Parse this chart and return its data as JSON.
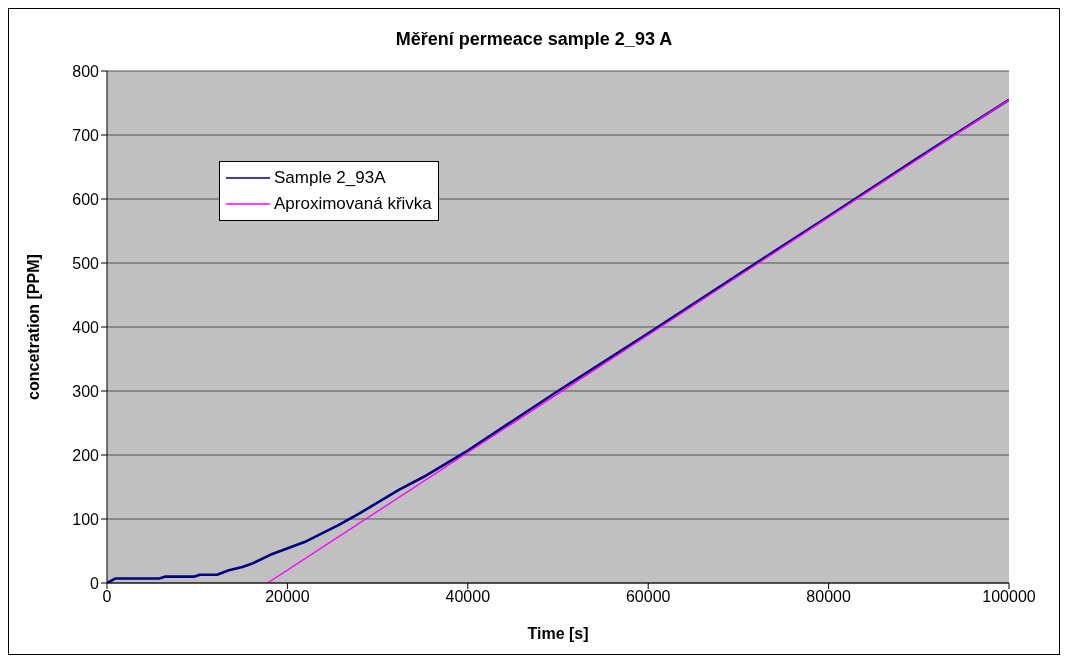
{
  "chart_data": {
    "type": "line",
    "title": "Měření permeace sample 2_93 A",
    "xlabel": "Time [s]",
    "ylabel": "concetration [PPM]",
    "xlim": [
      0,
      100000
    ],
    "xticks": [
      0,
      20000,
      40000,
      60000,
      80000,
      100000
    ],
    "ylim": [
      0,
      800
    ],
    "yticks": [
      0,
      100,
      200,
      300,
      400,
      500,
      600,
      700,
      800
    ],
    "grid": "y",
    "legend": "top left",
    "series": [
      {
        "name": "Sample 2_93A",
        "color": "#000080",
        "x": [
          0,
          900,
          5800,
          6500,
          9700,
          10300,
          12200,
          13500,
          15000,
          16200,
          18100,
          21900,
          25600,
          27900,
          32400,
          35400,
          40000,
          50000,
          60000,
          70000,
          80000,
          90000,
          100000
        ],
        "values": [
          0,
          7,
          7,
          10,
          10,
          13,
          13,
          20,
          25,
          31,
          44,
          64,
          90,
          108,
          146,
          168,
          207,
          300,
          390,
          482,
          573,
          665,
          755
        ]
      },
      {
        "name": "Aproximovaná křivka",
        "color": "#ff00ff",
        "x": [
          17800,
          100000
        ],
        "values": [
          0,
          755
        ]
      }
    ]
  }
}
